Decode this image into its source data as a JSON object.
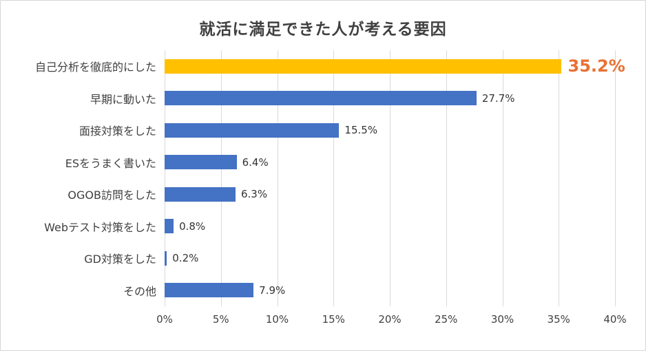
{
  "chart_data": {
    "type": "bar",
    "orientation": "horizontal",
    "title": "就活に満足できた人が考える要因",
    "categories": [
      "自己分析を徹底的にした",
      "早期に動いた",
      "面接対策をした",
      "ESをうまく書いた",
      "OGOB訪問をした",
      "Webテスト対策をした",
      "GD対策をした",
      "その他"
    ],
    "values": [
      35.2,
      27.7,
      15.5,
      6.4,
      6.3,
      0.8,
      0.2,
      7.9
    ],
    "value_labels": [
      "35.2%",
      "27.7%",
      "15.5%",
      "6.4%",
      "6.3%",
      "0.8%",
      "0.2%",
      "7.9%"
    ],
    "highlight_index": 0,
    "x_ticks": [
      "0%",
      "5%",
      "10%",
      "15%",
      "20%",
      "25%",
      "30%",
      "35%",
      "40%"
    ],
    "xlim": [
      0,
      40
    ],
    "grid": true,
    "legend": "none",
    "colors": {
      "bar_default": "#4472C4",
      "bar_highlight": "#FFC000",
      "highlight_label": "#E97132",
      "gridline": "#D9D9D9",
      "title_text": "#404040",
      "label_text": "#404040"
    }
  }
}
